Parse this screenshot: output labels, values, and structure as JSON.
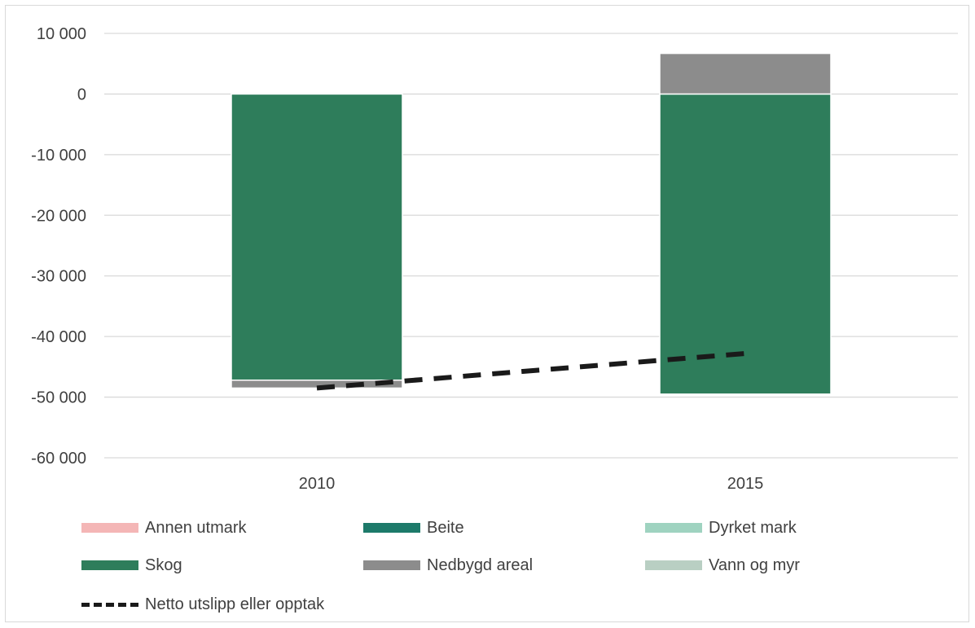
{
  "chart_data": {
    "type": "bar",
    "stacked": true,
    "categories": [
      "2010",
      "2015"
    ],
    "ylim": [
      -60000,
      10000
    ],
    "yticks": [
      10000,
      0,
      -10000,
      -20000,
      -30000,
      -40000,
      -50000,
      -60000
    ],
    "ytick_labels": [
      "10 000",
      "0",
      "-10 000",
      "-20 000",
      "-30 000",
      "-40 000",
      "-50 000",
      "-60 000"
    ],
    "grid": true,
    "legend_position": "bottom",
    "series": [
      {
        "name": "Annen utmark",
        "color": "#f4b6b6",
        "values": [
          0,
          0
        ]
      },
      {
        "name": "Beite",
        "color": "#1d7a6a",
        "values": [
          0,
          0
        ]
      },
      {
        "name": "Dyrket mark",
        "color": "#9fd3c0",
        "values": [
          0,
          0
        ]
      },
      {
        "name": "Skog",
        "color": "#2e7d5b",
        "values": [
          -47200,
          -49500
        ]
      },
      {
        "name": "Nedbygd areal",
        "color": "#8c8c8c",
        "values": [
          -1300,
          6700
        ]
      },
      {
        "name": "Vann og myr",
        "color": "#b9cfc3",
        "values": [
          0,
          0
        ]
      }
    ],
    "line_series": {
      "name": "Netto utslipp eller opptak",
      "type": "line",
      "style": "dashed",
      "color": "#1a1a1a",
      "values": [
        -48500,
        -42800
      ]
    }
  }
}
